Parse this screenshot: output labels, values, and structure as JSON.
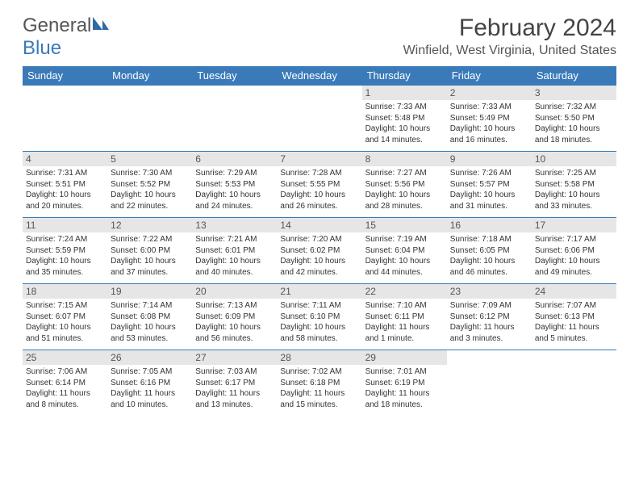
{
  "logo": {
    "word1": "General",
    "word2": "Blue",
    "icon_color": "#2f6aa3"
  },
  "title": "February 2024",
  "location": "Winfield, West Virginia, United States",
  "colors": {
    "header_bg": "#3a7ab8",
    "header_fg": "#ffffff",
    "daynum_bg": "#e6e6e6",
    "text": "#333333",
    "rule": "#3a7ab8"
  },
  "day_headers": [
    "Sunday",
    "Monday",
    "Tuesday",
    "Wednesday",
    "Thursday",
    "Friday",
    "Saturday"
  ],
  "weeks": [
    [
      null,
      null,
      null,
      null,
      {
        "n": "1",
        "sr": "Sunrise: 7:33 AM",
        "ss": "Sunset: 5:48 PM",
        "d1": "Daylight: 10 hours",
        "d2": "and 14 minutes."
      },
      {
        "n": "2",
        "sr": "Sunrise: 7:33 AM",
        "ss": "Sunset: 5:49 PM",
        "d1": "Daylight: 10 hours",
        "d2": "and 16 minutes."
      },
      {
        "n": "3",
        "sr": "Sunrise: 7:32 AM",
        "ss": "Sunset: 5:50 PM",
        "d1": "Daylight: 10 hours",
        "d2": "and 18 minutes."
      }
    ],
    [
      {
        "n": "4",
        "sr": "Sunrise: 7:31 AM",
        "ss": "Sunset: 5:51 PM",
        "d1": "Daylight: 10 hours",
        "d2": "and 20 minutes."
      },
      {
        "n": "5",
        "sr": "Sunrise: 7:30 AM",
        "ss": "Sunset: 5:52 PM",
        "d1": "Daylight: 10 hours",
        "d2": "and 22 minutes."
      },
      {
        "n": "6",
        "sr": "Sunrise: 7:29 AM",
        "ss": "Sunset: 5:53 PM",
        "d1": "Daylight: 10 hours",
        "d2": "and 24 minutes."
      },
      {
        "n": "7",
        "sr": "Sunrise: 7:28 AM",
        "ss": "Sunset: 5:55 PM",
        "d1": "Daylight: 10 hours",
        "d2": "and 26 minutes."
      },
      {
        "n": "8",
        "sr": "Sunrise: 7:27 AM",
        "ss": "Sunset: 5:56 PM",
        "d1": "Daylight: 10 hours",
        "d2": "and 28 minutes."
      },
      {
        "n": "9",
        "sr": "Sunrise: 7:26 AM",
        "ss": "Sunset: 5:57 PM",
        "d1": "Daylight: 10 hours",
        "d2": "and 31 minutes."
      },
      {
        "n": "10",
        "sr": "Sunrise: 7:25 AM",
        "ss": "Sunset: 5:58 PM",
        "d1": "Daylight: 10 hours",
        "d2": "and 33 minutes."
      }
    ],
    [
      {
        "n": "11",
        "sr": "Sunrise: 7:24 AM",
        "ss": "Sunset: 5:59 PM",
        "d1": "Daylight: 10 hours",
        "d2": "and 35 minutes."
      },
      {
        "n": "12",
        "sr": "Sunrise: 7:22 AM",
        "ss": "Sunset: 6:00 PM",
        "d1": "Daylight: 10 hours",
        "d2": "and 37 minutes."
      },
      {
        "n": "13",
        "sr": "Sunrise: 7:21 AM",
        "ss": "Sunset: 6:01 PM",
        "d1": "Daylight: 10 hours",
        "d2": "and 40 minutes."
      },
      {
        "n": "14",
        "sr": "Sunrise: 7:20 AM",
        "ss": "Sunset: 6:02 PM",
        "d1": "Daylight: 10 hours",
        "d2": "and 42 minutes."
      },
      {
        "n": "15",
        "sr": "Sunrise: 7:19 AM",
        "ss": "Sunset: 6:04 PM",
        "d1": "Daylight: 10 hours",
        "d2": "and 44 minutes."
      },
      {
        "n": "16",
        "sr": "Sunrise: 7:18 AM",
        "ss": "Sunset: 6:05 PM",
        "d1": "Daylight: 10 hours",
        "d2": "and 46 minutes."
      },
      {
        "n": "17",
        "sr": "Sunrise: 7:17 AM",
        "ss": "Sunset: 6:06 PM",
        "d1": "Daylight: 10 hours",
        "d2": "and 49 minutes."
      }
    ],
    [
      {
        "n": "18",
        "sr": "Sunrise: 7:15 AM",
        "ss": "Sunset: 6:07 PM",
        "d1": "Daylight: 10 hours",
        "d2": "and 51 minutes."
      },
      {
        "n": "19",
        "sr": "Sunrise: 7:14 AM",
        "ss": "Sunset: 6:08 PM",
        "d1": "Daylight: 10 hours",
        "d2": "and 53 minutes."
      },
      {
        "n": "20",
        "sr": "Sunrise: 7:13 AM",
        "ss": "Sunset: 6:09 PM",
        "d1": "Daylight: 10 hours",
        "d2": "and 56 minutes."
      },
      {
        "n": "21",
        "sr": "Sunrise: 7:11 AM",
        "ss": "Sunset: 6:10 PM",
        "d1": "Daylight: 10 hours",
        "d2": "and 58 minutes."
      },
      {
        "n": "22",
        "sr": "Sunrise: 7:10 AM",
        "ss": "Sunset: 6:11 PM",
        "d1": "Daylight: 11 hours",
        "d2": "and 1 minute."
      },
      {
        "n": "23",
        "sr": "Sunrise: 7:09 AM",
        "ss": "Sunset: 6:12 PM",
        "d1": "Daylight: 11 hours",
        "d2": "and 3 minutes."
      },
      {
        "n": "24",
        "sr": "Sunrise: 7:07 AM",
        "ss": "Sunset: 6:13 PM",
        "d1": "Daylight: 11 hours",
        "d2": "and 5 minutes."
      }
    ],
    [
      {
        "n": "25",
        "sr": "Sunrise: 7:06 AM",
        "ss": "Sunset: 6:14 PM",
        "d1": "Daylight: 11 hours",
        "d2": "and 8 minutes."
      },
      {
        "n": "26",
        "sr": "Sunrise: 7:05 AM",
        "ss": "Sunset: 6:16 PM",
        "d1": "Daylight: 11 hours",
        "d2": "and 10 minutes."
      },
      {
        "n": "27",
        "sr": "Sunrise: 7:03 AM",
        "ss": "Sunset: 6:17 PM",
        "d1": "Daylight: 11 hours",
        "d2": "and 13 minutes."
      },
      {
        "n": "28",
        "sr": "Sunrise: 7:02 AM",
        "ss": "Sunset: 6:18 PM",
        "d1": "Daylight: 11 hours",
        "d2": "and 15 minutes."
      },
      {
        "n": "29",
        "sr": "Sunrise: 7:01 AM",
        "ss": "Sunset: 6:19 PM",
        "d1": "Daylight: 11 hours",
        "d2": "and 18 minutes."
      },
      null,
      null
    ]
  ]
}
